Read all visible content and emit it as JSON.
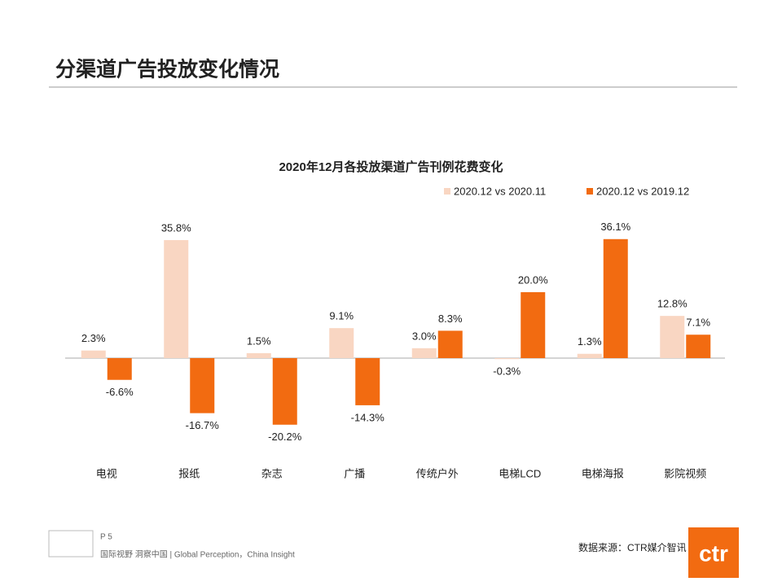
{
  "slide": {
    "title": "分渠道广告投放变化情况",
    "page": "P 5",
    "tagline": "国际视野 洞察中国 | Global Perception，China Insight",
    "source": "数据来源：CTR媒介智讯",
    "logo": "ctr"
  },
  "chart_data": {
    "type": "bar",
    "title": "2020年12月各投放渠道广告刊例花费变化",
    "categories": [
      "电视",
      "报纸",
      "杂志",
      "广播",
      "传统户外",
      "电梯LCD",
      "电梯海报",
      "影院视频"
    ],
    "series": [
      {
        "name": "2020.12 vs 2020.11",
        "color": "#f9d6c2",
        "values": [
          2.3,
          35.8,
          1.5,
          9.1,
          3.0,
          -0.3,
          1.3,
          12.8
        ],
        "value_labels": [
          "2.3%",
          "35.8%",
          "1.5%",
          "9.1%",
          "3.0%",
          "-0.3%",
          "1.3%",
          "12.8%"
        ]
      },
      {
        "name": "2020.12 vs 2019.12",
        "color": "#f26b11",
        "values": [
          -6.6,
          -16.7,
          -20.2,
          -14.3,
          8.3,
          20.0,
          36.1,
          7.1
        ],
        "value_labels": [
          "-6.6%",
          "-16.7%",
          "-20.2%",
          "-14.3%",
          "8.3%",
          "20.0%",
          "36.1%",
          "7.1%"
        ]
      }
    ]
  }
}
